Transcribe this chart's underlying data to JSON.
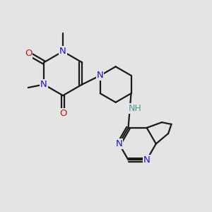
{
  "bg_color": "#e4e4e4",
  "bond_color": "#1a1a1a",
  "nitrogen_color": "#1414cc",
  "oxygen_color": "#cc1414",
  "nh_color": "#4a9a9a",
  "line_width": 1.6,
  "font_size": 9.5,
  "xlim": [
    0,
    10
  ],
  "ylim": [
    0,
    10
  ]
}
